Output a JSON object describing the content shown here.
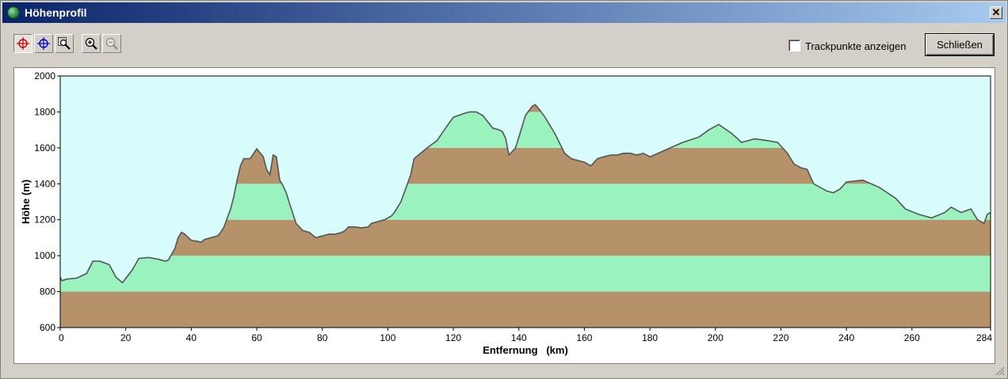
{
  "window": {
    "title": "Höhenprofil",
    "close_glyph": "✕"
  },
  "toolbar": {
    "buttons": [
      {
        "name": "crosshair-red-icon",
        "color": "#cc0000",
        "pressed": true
      },
      {
        "name": "crosshair-blue-icon",
        "color": "#0000cc",
        "pressed": false
      },
      {
        "name": "zoom-region-icon",
        "pressed": false
      },
      {
        "name": "zoom-in-icon",
        "pressed": false
      },
      {
        "name": "zoom-out-icon",
        "disabled": true,
        "pressed": false
      }
    ]
  },
  "options": {
    "show_trackpoints_label": "Trackpunkte anzeigen",
    "show_trackpoints_checked": false
  },
  "buttons": {
    "close_label": "Schließen"
  },
  "chart_data": {
    "type": "area",
    "xlabel": "Entfernung   (km)",
    "ylabel": "Höhe (m)",
    "xlim": [
      0,
      284
    ],
    "ylim": [
      600,
      2000
    ],
    "xticks": [
      0,
      20,
      40,
      60,
      80,
      100,
      120,
      140,
      160,
      180,
      200,
      220,
      240,
      260,
      284
    ],
    "yticks": [
      600,
      800,
      1000,
      1200,
      1400,
      1600,
      1800,
      2000
    ],
    "band_colors": [
      "#b5926a",
      "#9af2be"
    ],
    "sky_color": "#d8fcfc",
    "line_color": "#555555",
    "x": [
      0,
      0.5,
      2,
      5,
      8,
      10,
      12,
      15,
      17,
      19,
      22,
      24,
      27,
      30,
      32,
      33,
      35,
      36,
      37,
      38,
      40,
      42,
      43,
      44,
      46,
      48,
      49,
      50,
      52,
      53,
      54,
      55,
      56,
      58,
      60,
      62,
      63,
      64,
      65,
      66,
      67,
      68,
      69,
      70,
      72,
      74,
      76,
      78,
      80,
      82,
      84,
      86,
      87,
      88,
      90,
      92,
      94,
      95,
      97,
      99,
      101,
      102,
      104,
      106,
      107,
      108,
      110,
      112,
      115,
      118,
      120,
      123,
      125,
      127,
      129,
      132,
      134,
      135,
      136,
      137,
      139,
      141,
      142,
      144,
      145,
      146,
      148,
      151,
      154,
      156,
      158,
      160,
      161,
      162,
      164,
      166,
      168,
      170,
      172,
      174,
      176,
      178,
      180,
      185,
      190,
      195,
      198,
      201,
      205,
      208,
      212,
      216,
      219,
      220,
      222,
      224,
      226,
      228,
      230,
      234,
      236,
      238,
      240,
      245,
      250,
      255,
      258,
      262,
      266,
      270,
      272,
      275,
      278,
      280,
      282,
      283,
      284
    ],
    "y": [
      880,
      860,
      870,
      875,
      900,
      970,
      970,
      950,
      880,
      850,
      920,
      985,
      990,
      980,
      970,
      975,
      1040,
      1100,
      1130,
      1120,
      1085,
      1080,
      1075,
      1090,
      1100,
      1110,
      1130,
      1160,
      1260,
      1330,
      1420,
      1500,
      1540,
      1540,
      1595,
      1550,
      1480,
      1450,
      1560,
      1550,
      1420,
      1390,
      1350,
      1290,
      1180,
      1140,
      1130,
      1100,
      1110,
      1120,
      1120,
      1130,
      1140,
      1160,
      1160,
      1155,
      1160,
      1180,
      1190,
      1200,
      1220,
      1240,
      1300,
      1400,
      1450,
      1540,
      1570,
      1600,
      1640,
      1720,
      1770,
      1790,
      1800,
      1800,
      1780,
      1710,
      1700,
      1690,
      1650,
      1560,
      1600,
      1720,
      1780,
      1830,
      1840,
      1820,
      1770,
      1680,
      1570,
      1540,
      1530,
      1520,
      1510,
      1500,
      1540,
      1550,
      1560,
      1560,
      1570,
      1570,
      1560,
      1570,
      1550,
      1590,
      1630,
      1660,
      1700,
      1730,
      1680,
      1630,
      1650,
      1640,
      1630,
      1610,
      1570,
      1510,
      1490,
      1480,
      1400,
      1360,
      1350,
      1370,
      1410,
      1420,
      1380,
      1320,
      1260,
      1230,
      1210,
      1240,
      1270,
      1240,
      1260,
      1200,
      1180,
      1230,
      1240
    ]
  }
}
